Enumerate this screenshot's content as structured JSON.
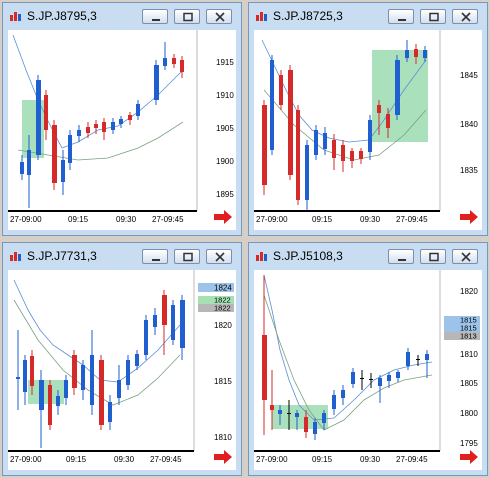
{
  "windows": [
    {
      "title": "S.JP.J8795,3",
      "yticks": [
        "1915",
        "1910",
        "1905",
        "1900",
        "1895"
      ],
      "xticks": [
        "27-09:00",
        "09:15",
        "09:30",
        "27-09:45"
      ],
      "price_labels": []
    },
    {
      "title": "S.JP.J8725,3",
      "yticks": [
        "1845",
        "1840",
        "1835"
      ],
      "xticks": [
        "27-09:00",
        "09:15",
        "09:30",
        "27-09:45"
      ],
      "price_labels": []
    },
    {
      "title": "S.JP.J7731,3",
      "yticks": [
        "1820",
        "1815",
        "1810"
      ],
      "xticks": [
        "27-09:00",
        "09:15",
        "09:30",
        "27-09:45"
      ],
      "price_labels": [
        "1824",
        "1822",
        "1822"
      ]
    },
    {
      "title": "S.JP.J5108,3",
      "yticks": [
        "1820",
        "1815",
        "1810",
        "1805",
        "1800",
        "1795"
      ],
      "xticks": [
        "27-09:00",
        "09:15",
        "09:30",
        "27-09:45"
      ],
      "price_labels": [
        "1815",
        "1815",
        "1813"
      ]
    }
  ],
  "colors": {
    "up_candle": "#1f5fd0",
    "down_candle": "#d42a2a",
    "highlight_zone": "#8fd6a6",
    "ma_fast": "#5a8fd8",
    "ma_slow": "#7aa080",
    "arrow": "#e02020"
  },
  "icons": [
    "chart-app-icon",
    "minimize-icon",
    "restore-icon",
    "close-icon",
    "right-arrow-icon"
  ]
}
